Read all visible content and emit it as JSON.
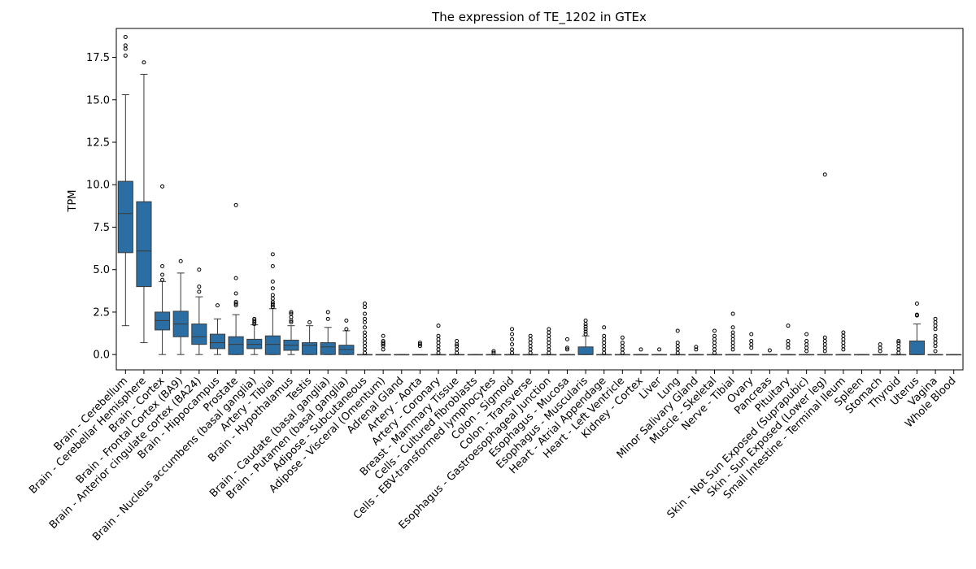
{
  "chart_data": {
    "type": "box",
    "title": "The expression of TE_1202 in GTEx",
    "xlabel": "",
    "ylabel": "TPM",
    "ylim": [
      -0.9,
      19.2
    ],
    "yticks": [
      "0.0",
      "2.5",
      "5.0",
      "7.5",
      "10.0",
      "12.5",
      "15.0",
      "17.5"
    ],
    "box_color": "#2b6ea3",
    "categories": [
      "Brain - Cerebellum",
      "Brain - Cerebellar Hemisphere",
      "Brain - Cortex",
      "Brain - Frontal Cortex (BA9)",
      "Brain - Anterior cingulate cortex (BA24)",
      "Brain - Hippocampus",
      "Prostate",
      "Brain - Nucleus accumbens (basal ganglia)",
      "Artery - Tibial",
      "Brain - Hypothalamus",
      "Testis",
      "Brain - Caudate (basal ganglia)",
      "Brain - Putamen (basal ganglia)",
      "Adipose - Subcutaneous",
      "Adipose - Visceral (Omentum)",
      "Adrenal Gland",
      "Artery - Aorta",
      "Artery - Coronary",
      "Breast - Mammary Tissue",
      "Cells - Cultured fibroblasts",
      "Cells - EBV-transformed lymphocytes",
      "Colon - Sigmoid",
      "Colon - Transverse",
      "Esophagus - Gastroesophageal Junction",
      "Esophagus - Mucosa",
      "Esophagus - Muscularis",
      "Heart - Atrial Appendage",
      "Heart - Left Ventricle",
      "Kidney - Cortex",
      "Liver",
      "Lung",
      "Minor Salivary Gland",
      "Muscle - Skeletal",
      "Nerve - Tibial",
      "Ovary",
      "Pancreas",
      "Pituitary",
      "Skin - Not Sun Exposed (Suprapubic)",
      "Skin - Sun Exposed (Lower leg)",
      "Small Intestine - Terminal Ileum",
      "Spleen",
      "Stomach",
      "Thyroid",
      "Uterus",
      "Vagina",
      "Whole Blood"
    ],
    "boxes": [
      {
        "q1": 6.0,
        "median": 8.3,
        "q3": 10.2,
        "wlo": 1.7,
        "whi": 15.3,
        "outliers": [
          17.6,
          18.0,
          18.2,
          18.7
        ]
      },
      {
        "q1": 4.0,
        "median": 6.1,
        "q3": 9.0,
        "wlo": 0.7,
        "whi": 16.5,
        "outliers": [
          17.2
        ]
      },
      {
        "q1": 1.45,
        "median": 2.0,
        "q3": 2.5,
        "wlo": 0.0,
        "whi": 4.3,
        "outliers": [
          4.4,
          4.7,
          5.2,
          9.9
        ]
      },
      {
        "q1": 1.05,
        "median": 1.8,
        "q3": 2.55,
        "wlo": 0.0,
        "whi": 4.8,
        "outliers": [
          5.5
        ]
      },
      {
        "q1": 0.6,
        "median": 1.05,
        "q3": 1.8,
        "wlo": 0.0,
        "whi": 3.4,
        "outliers": [
          3.7,
          4.0,
          5.0
        ]
      },
      {
        "q1": 0.35,
        "median": 0.7,
        "q3": 1.2,
        "wlo": 0.0,
        "whi": 2.1,
        "outliers": [
          2.9
        ]
      },
      {
        "q1": 0.0,
        "median": 0.6,
        "q3": 1.05,
        "wlo": 0.0,
        "whi": 2.35,
        "outliers": [
          2.9,
          3.0,
          3.1,
          3.6,
          4.5,
          8.8
        ]
      },
      {
        "q1": 0.35,
        "median": 0.6,
        "q3": 0.9,
        "wlo": 0.0,
        "whi": 1.75,
        "outliers": [
          1.8,
          1.9,
          2.0,
          2.1
        ]
      },
      {
        "q1": 0.0,
        "median": 0.6,
        "q3": 1.1,
        "wlo": 0.0,
        "whi": 2.7,
        "outliers": [
          2.8,
          2.9,
          3.0,
          3.1,
          3.3,
          3.5,
          3.9,
          4.3,
          5.2,
          5.9
        ]
      },
      {
        "q1": 0.25,
        "median": 0.55,
        "q3": 0.85,
        "wlo": 0.0,
        "whi": 1.7,
        "outliers": [
          1.9,
          2.0,
          2.2,
          2.4,
          2.5
        ]
      },
      {
        "q1": 0.0,
        "median": 0.55,
        "q3": 0.7,
        "wlo": 0.0,
        "whi": 1.7,
        "outliers": [
          1.9
        ]
      },
      {
        "q1": 0.0,
        "median": 0.45,
        "q3": 0.7,
        "wlo": 0.0,
        "whi": 1.6,
        "outliers": [
          2.1,
          2.5
        ]
      },
      {
        "q1": 0.0,
        "median": 0.3,
        "q3": 0.55,
        "wlo": 0.0,
        "whi": 1.4,
        "outliers": [
          1.5,
          2.0
        ]
      },
      {
        "q1": 0.0,
        "median": 0.0,
        "q3": 0.0,
        "wlo": 0.0,
        "whi": 0.0,
        "outliers": [
          0.1,
          0.3,
          0.5,
          0.7,
          0.9,
          1.1,
          1.3,
          1.6,
          1.9,
          2.1,
          2.4,
          2.8,
          3.0
        ]
      },
      {
        "q1": 0.0,
        "median": 0.0,
        "q3": 0.0,
        "wlo": 0.0,
        "whi": 0.0,
        "outliers": [
          0.3,
          0.5,
          0.6,
          0.7,
          0.8,
          1.1
        ]
      },
      {
        "q1": 0.0,
        "median": 0.0,
        "q3": 0.0,
        "wlo": 0.0,
        "whi": 0.0,
        "outliers": []
      },
      {
        "q1": 0.0,
        "median": 0.0,
        "q3": 0.0,
        "wlo": 0.0,
        "whi": 0.0,
        "outliers": [
          0.5,
          0.6,
          0.7
        ]
      },
      {
        "q1": 0.0,
        "median": 0.0,
        "q3": 0.0,
        "wlo": 0.0,
        "whi": 0.0,
        "outliers": [
          0.1,
          0.3,
          0.5,
          0.7,
          0.9,
          1.1,
          1.7
        ]
      },
      {
        "q1": 0.0,
        "median": 0.0,
        "q3": 0.0,
        "wlo": 0.0,
        "whi": 0.0,
        "outliers": [
          0.1,
          0.3,
          0.5,
          0.6,
          0.8
        ]
      },
      {
        "q1": 0.0,
        "median": 0.0,
        "q3": 0.0,
        "wlo": 0.0,
        "whi": 0.0,
        "outliers": []
      },
      {
        "q1": 0.0,
        "median": 0.0,
        "q3": 0.0,
        "wlo": 0.0,
        "whi": 0.0,
        "outliers": [
          0.1,
          0.2
        ]
      },
      {
        "q1": 0.0,
        "median": 0.0,
        "q3": 0.0,
        "wlo": 0.0,
        "whi": 0.0,
        "outliers": [
          0.1,
          0.3,
          0.6,
          0.9,
          1.2,
          1.5
        ]
      },
      {
        "q1": 0.0,
        "median": 0.0,
        "q3": 0.0,
        "wlo": 0.0,
        "whi": 0.0,
        "outliers": [
          0.1,
          0.3,
          0.5,
          0.7,
          0.9,
          1.1
        ]
      },
      {
        "q1": 0.0,
        "median": 0.0,
        "q3": 0.0,
        "wlo": 0.0,
        "whi": 0.0,
        "outliers": [
          0.1,
          0.3,
          0.5,
          0.7,
          0.9,
          1.1,
          1.3,
          1.5
        ]
      },
      {
        "q1": 0.0,
        "median": 0.0,
        "q3": 0.0,
        "wlo": 0.0,
        "whi": 0.0,
        "outliers": [
          0.3,
          0.4,
          0.9
        ]
      },
      {
        "q1": 0.0,
        "median": 0.0,
        "q3": 0.45,
        "wlo": 0.0,
        "whi": 1.1,
        "outliers": [
          1.2,
          1.35,
          1.5,
          1.65,
          1.8,
          2.0
        ]
      },
      {
        "q1": 0.0,
        "median": 0.0,
        "q3": 0.0,
        "wlo": 0.0,
        "whi": 0.0,
        "outliers": [
          0.1,
          0.3,
          0.5,
          0.7,
          0.9,
          1.1,
          1.6
        ]
      },
      {
        "q1": 0.0,
        "median": 0.0,
        "q3": 0.0,
        "wlo": 0.0,
        "whi": 0.0,
        "outliers": [
          0.1,
          0.3,
          0.5,
          0.7,
          1.0
        ]
      },
      {
        "q1": 0.0,
        "median": 0.0,
        "q3": 0.0,
        "wlo": 0.0,
        "whi": 0.0,
        "outliers": [
          0.3
        ]
      },
      {
        "q1": 0.0,
        "median": 0.0,
        "q3": 0.0,
        "wlo": 0.0,
        "whi": 0.0,
        "outliers": [
          0.3
        ]
      },
      {
        "q1": 0.0,
        "median": 0.0,
        "q3": 0.0,
        "wlo": 0.0,
        "whi": 0.0,
        "outliers": [
          0.1,
          0.3,
          0.5,
          0.7,
          1.4
        ]
      },
      {
        "q1": 0.0,
        "median": 0.0,
        "q3": 0.0,
        "wlo": 0.0,
        "whi": 0.0,
        "outliers": [
          0.3,
          0.45
        ]
      },
      {
        "q1": 0.0,
        "median": 0.0,
        "q3": 0.0,
        "wlo": 0.0,
        "whi": 0.0,
        "outliers": [
          0.1,
          0.3,
          0.5,
          0.7,
          0.9,
          1.1,
          1.4
        ]
      },
      {
        "q1": 0.0,
        "median": 0.0,
        "q3": 0.0,
        "wlo": 0.0,
        "whi": 0.0,
        "outliers": [
          0.3,
          0.5,
          0.7,
          0.9,
          1.1,
          1.3,
          1.6,
          2.4
        ]
      },
      {
        "q1": 0.0,
        "median": 0.0,
        "q3": 0.0,
        "wlo": 0.0,
        "whi": 0.0,
        "outliers": [
          0.4,
          0.6,
          0.8,
          1.2
        ]
      },
      {
        "q1": 0.0,
        "median": 0.0,
        "q3": 0.0,
        "wlo": 0.0,
        "whi": 0.0,
        "outliers": [
          0.25
        ]
      },
      {
        "q1": 0.0,
        "median": 0.0,
        "q3": 0.0,
        "wlo": 0.0,
        "whi": 0.0,
        "outliers": [
          0.4,
          0.6,
          0.8,
          1.7
        ]
      },
      {
        "q1": 0.0,
        "median": 0.0,
        "q3": 0.0,
        "wlo": 0.0,
        "whi": 0.0,
        "outliers": [
          0.2,
          0.4,
          0.6,
          0.8,
          1.2
        ]
      },
      {
        "q1": 0.0,
        "median": 0.0,
        "q3": 0.0,
        "wlo": 0.0,
        "whi": 0.0,
        "outliers": [
          0.2,
          0.4,
          0.6,
          0.8,
          1.0,
          10.6
        ]
      },
      {
        "q1": 0.0,
        "median": 0.0,
        "q3": 0.0,
        "wlo": 0.0,
        "whi": 0.0,
        "outliers": [
          0.3,
          0.5,
          0.7,
          0.9,
          1.1,
          1.3
        ]
      },
      {
        "q1": 0.0,
        "median": 0.0,
        "q3": 0.0,
        "wlo": 0.0,
        "whi": 0.0,
        "outliers": []
      },
      {
        "q1": 0.0,
        "median": 0.0,
        "q3": 0.0,
        "wlo": 0.0,
        "whi": 0.0,
        "outliers": [
          0.2,
          0.4,
          0.6
        ]
      },
      {
        "q1": 0.0,
        "median": 0.0,
        "q3": 0.0,
        "wlo": 0.0,
        "whi": 0.0,
        "outliers": [
          0.1,
          0.3,
          0.5,
          0.7,
          0.8
        ]
      },
      {
        "q1": 0.0,
        "median": 0.0,
        "q3": 0.8,
        "wlo": 0.0,
        "whi": 1.8,
        "outliers": [
          2.3,
          2.35,
          3.0
        ]
      },
      {
        "q1": 0.0,
        "median": 0.0,
        "q3": 0.0,
        "wlo": 0.0,
        "whi": 0.0,
        "outliers": [
          0.2,
          0.5,
          0.7,
          0.9,
          1.1,
          1.5,
          1.7,
          1.9,
          2.1
        ]
      },
      {
        "q1": 0.0,
        "median": 0.0,
        "q3": 0.0,
        "wlo": 0.0,
        "whi": 0.0,
        "outliers": []
      }
    ]
  }
}
